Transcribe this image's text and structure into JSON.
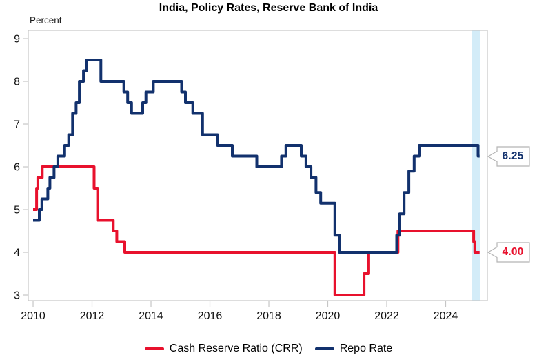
{
  "title": "India, Policy Rates, Reserve Bank of India",
  "ylabel": "Percent",
  "legend": [
    {
      "label": "Cash Reserve Ratio (CRR)",
      "color": "#e8112d"
    },
    {
      "label": "Repo Rate",
      "color": "#12316d"
    }
  ],
  "callouts": [
    {
      "label": "6.25",
      "value": 6.25,
      "color": "#12316d"
    },
    {
      "label": "4.00",
      "value": 4.0,
      "color": "#e8112d"
    }
  ],
  "chart_data": {
    "type": "line",
    "line_style": "step-after",
    "title": "India, Policy Rates, Reserve Bank of India",
    "xlabel": "",
    "ylabel": "Percent",
    "xlim": [
      2009.836,
      2025.415
    ],
    "ylim": [
      2.871,
      9.194
    ],
    "x_ticks": [
      2010,
      2012,
      2014,
      2016,
      2018,
      2020,
      2022,
      2024
    ],
    "y_ticks": [
      3,
      4,
      5,
      6,
      7,
      8,
      9
    ],
    "grid": false,
    "legend_position": "bottom",
    "frame_color": "#c6c6c6",
    "highlight_band": {
      "x_start": 2024.9,
      "x_end": 2025.17,
      "color": "#d3ecf8"
    },
    "series": [
      {
        "name": "Cash Reserve Ratio (CRR)",
        "color": "#e8112d",
        "end_x": 2025.15,
        "points": [
          [
            2010.0,
            5.0
          ],
          [
            2010.12,
            5.5
          ],
          [
            2010.16,
            5.75
          ],
          [
            2010.31,
            6.0
          ],
          [
            2012.07,
            5.5
          ],
          [
            2012.19,
            4.75
          ],
          [
            2012.72,
            4.5
          ],
          [
            2012.84,
            4.25
          ],
          [
            2013.11,
            4.0
          ],
          [
            2020.24,
            3.0
          ],
          [
            2021.23,
            3.5
          ],
          [
            2021.39,
            4.0
          ],
          [
            2022.38,
            4.5
          ],
          [
            2024.95,
            4.25
          ],
          [
            2024.99,
            4.0
          ]
        ]
      },
      {
        "name": "Repo Rate",
        "color": "#12316d",
        "end_x": 2025.15,
        "points": [
          [
            2010.0,
            4.75
          ],
          [
            2010.21,
            5.0
          ],
          [
            2010.3,
            5.25
          ],
          [
            2010.5,
            5.5
          ],
          [
            2010.57,
            5.75
          ],
          [
            2010.71,
            6.0
          ],
          [
            2010.84,
            6.25
          ],
          [
            2011.07,
            6.5
          ],
          [
            2011.21,
            6.75
          ],
          [
            2011.34,
            7.25
          ],
          [
            2011.46,
            7.5
          ],
          [
            2011.57,
            8.0
          ],
          [
            2011.71,
            8.25
          ],
          [
            2011.82,
            8.5
          ],
          [
            2012.3,
            8.0
          ],
          [
            2013.08,
            7.75
          ],
          [
            2013.21,
            7.5
          ],
          [
            2013.34,
            7.25
          ],
          [
            2013.72,
            7.5
          ],
          [
            2013.83,
            7.75
          ],
          [
            2014.08,
            8.0
          ],
          [
            2015.04,
            7.75
          ],
          [
            2015.17,
            7.5
          ],
          [
            2015.42,
            7.25
          ],
          [
            2015.75,
            6.75
          ],
          [
            2016.26,
            6.5
          ],
          [
            2016.76,
            6.25
          ],
          [
            2017.59,
            6.0
          ],
          [
            2018.43,
            6.25
          ],
          [
            2018.58,
            6.5
          ],
          [
            2019.1,
            6.25
          ],
          [
            2019.26,
            6.0
          ],
          [
            2019.43,
            5.75
          ],
          [
            2019.6,
            5.4
          ],
          [
            2019.76,
            5.15
          ],
          [
            2020.24,
            4.4
          ],
          [
            2020.39,
            4.0
          ],
          [
            2022.34,
            4.4
          ],
          [
            2022.44,
            4.9
          ],
          [
            2022.59,
            5.4
          ],
          [
            2022.75,
            5.9
          ],
          [
            2022.93,
            6.25
          ],
          [
            2023.1,
            6.5
          ],
          [
            2025.1,
            6.25
          ]
        ]
      }
    ]
  }
}
